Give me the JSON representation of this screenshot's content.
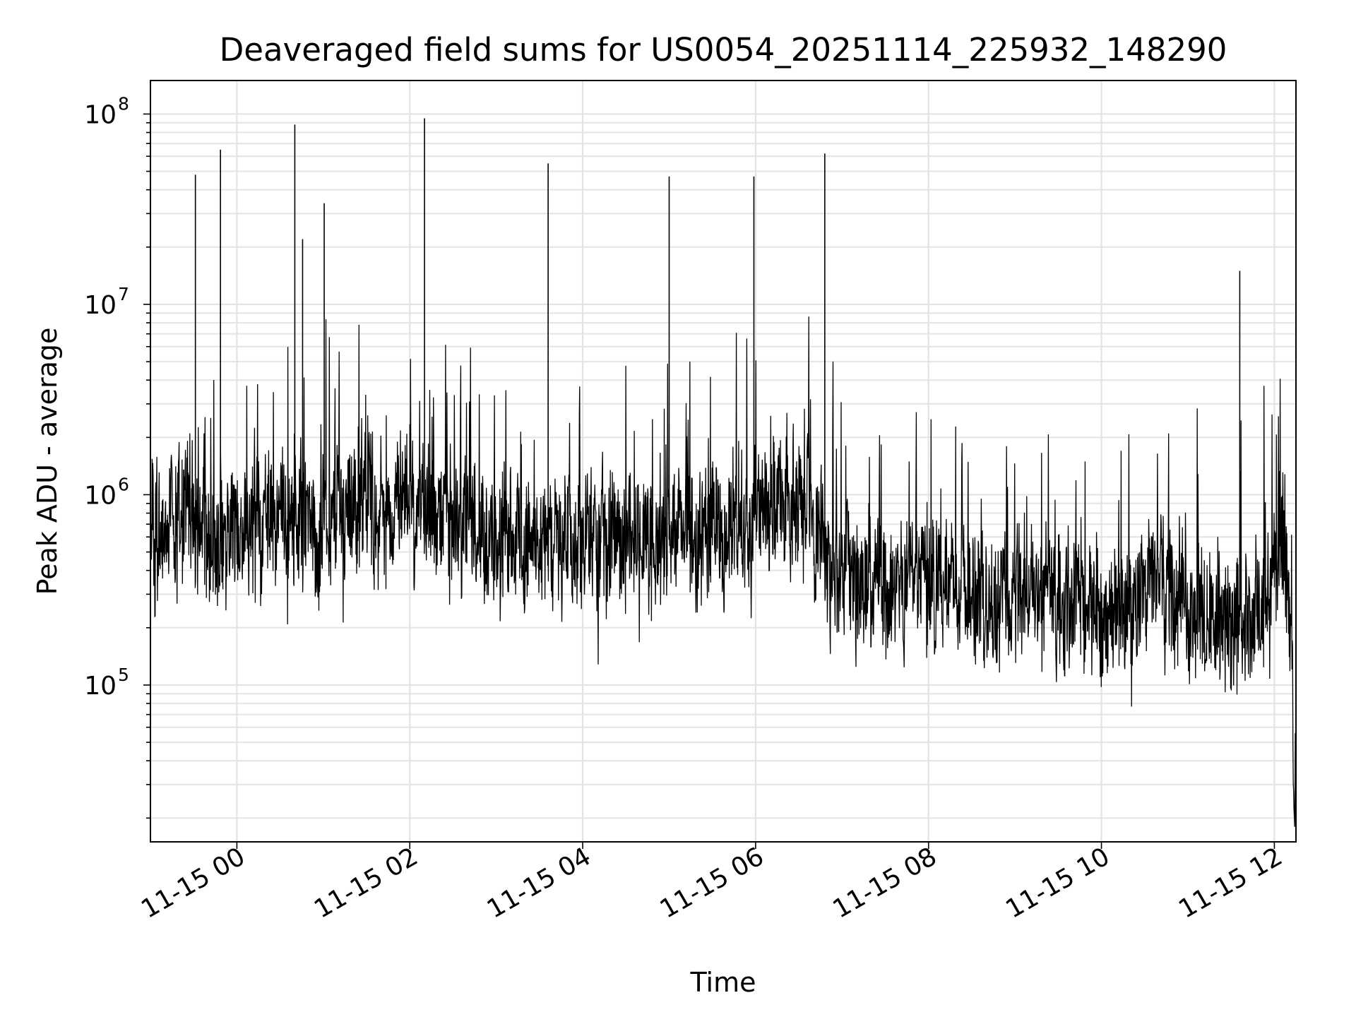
{
  "chart_data": {
    "type": "line",
    "title": "Deaveraged field sums for US0054_20251114_225932_148290",
    "xlabel": "Time",
    "ylabel": "Peak ADU - average",
    "yscale": "log",
    "ylim": [
      15000,
      150000000
    ],
    "xlim_hours": [
      -1.0,
      12.25
    ],
    "grid": "on",
    "x_ticks": [
      {
        "hour": 0,
        "label": "11-15 00"
      },
      {
        "hour": 2,
        "label": "11-15 02"
      },
      {
        "hour": 4,
        "label": "11-15 04"
      },
      {
        "hour": 6,
        "label": "11-15 06"
      },
      {
        "hour": 8,
        "label": "11-15 08"
      },
      {
        "hour": 10,
        "label": "11-15 10"
      },
      {
        "hour": 12,
        "label": "11-15 12"
      }
    ],
    "y_ticks": [
      {
        "value": 100000,
        "base": "10",
        "exp": "5"
      },
      {
        "value": 1000000,
        "base": "10",
        "exp": "6"
      },
      {
        "value": 10000000,
        "base": "10",
        "exp": "7"
      },
      {
        "value": 100000000,
        "base": "10",
        "exp": "8"
      }
    ],
    "series": [
      {
        "name": "Peak ADU - average",
        "color": "#000000",
        "baseline": [
          {
            "hour": -1.0,
            "value": 550000
          },
          {
            "hour": -0.7,
            "value": 750000
          },
          {
            "hour": -0.5,
            "value": 700000
          },
          {
            "hour": -0.3,
            "value": 550000
          },
          {
            "hour": 0.5,
            "value": 700000
          },
          {
            "hour": 1.0,
            "value": 650000
          },
          {
            "hour": 2.0,
            "value": 900000
          },
          {
            "hour": 3.0,
            "value": 600000
          },
          {
            "hour": 4.0,
            "value": 620000
          },
          {
            "hour": 5.0,
            "value": 580000
          },
          {
            "hour": 5.8,
            "value": 650000
          },
          {
            "hour": 6.3,
            "value": 1000000
          },
          {
            "hour": 6.6,
            "value": 900000
          },
          {
            "hour": 6.8,
            "value": 450000
          },
          {
            "hour": 7.5,
            "value": 350000
          },
          {
            "hour": 8.0,
            "value": 320000
          },
          {
            "hour": 8.5,
            "value": 270000
          },
          {
            "hour": 9.0,
            "value": 300000
          },
          {
            "hour": 9.5,
            "value": 280000
          },
          {
            "hour": 9.9,
            "value": 190000
          },
          {
            "hour": 10.2,
            "value": 250000
          },
          {
            "hour": 10.7,
            "value": 330000
          },
          {
            "hour": 11.0,
            "value": 250000
          },
          {
            "hour": 11.5,
            "value": 220000
          },
          {
            "hour": 11.95,
            "value": 260000
          },
          {
            "hour": 12.1,
            "value": 700000
          },
          {
            "hour": 12.15,
            "value": 300000
          },
          {
            "hour": 12.2,
            "value": 100000
          },
          {
            "hour": 12.25,
            "value": 30000
          }
        ],
        "spikes": [
          {
            "hour": -0.48,
            "value": 48000000
          },
          {
            "hour": -0.19,
            "value": 65000000
          },
          {
            "hour": 0.67,
            "value": 88000000
          },
          {
            "hour": 0.76,
            "value": 22000000
          },
          {
            "hour": 1.01,
            "value": 34000000
          },
          {
            "hour": 2.17,
            "value": 95000000
          },
          {
            "hour": 3.6,
            "value": 55000000
          },
          {
            "hour": 5.0,
            "value": 47000000
          },
          {
            "hour": 5.98,
            "value": 47000000
          },
          {
            "hour": 6.8,
            "value": 62000000
          },
          {
            "hour": 11.6,
            "value": 15000000
          }
        ]
      }
    ]
  }
}
